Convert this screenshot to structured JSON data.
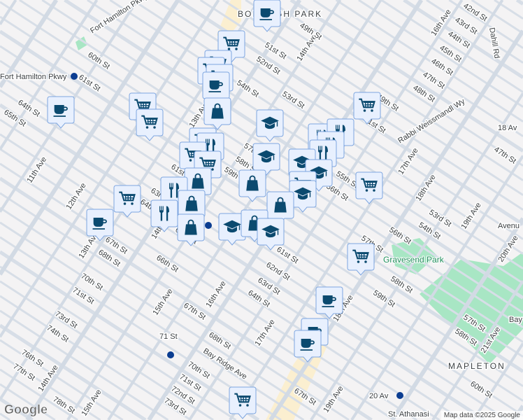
{
  "map": {
    "neighborhoods": [
      "BOROUGH PARK",
      "MAPLETON"
    ],
    "park": "Gravesend Park",
    "stations": [
      "Fort Hamilton Pkwy",
      "71 St",
      "20 Av"
    ],
    "partial_labels": [
      "Avenu",
      "Bay",
      "St. Athanasi"
    ],
    "streets": [
      "49th St",
      "51st St",
      "52nd St",
      "53rd St",
      "54th St",
      "55th St",
      "56th St",
      "57th St",
      "58th St",
      "59th St",
      "60th St",
      "61st St",
      "62nd St",
      "63rd St",
      "64th St",
      "65th St",
      "66th St",
      "67th St",
      "68th St",
      "70th St",
      "71st St",
      "72nd St",
      "73rd St",
      "74th St",
      "76th St",
      "77th St",
      "78th St",
      "Fort Hamilton Pkwy",
      "Bay Ridge Ave",
      "Rabbi Weissmandl Wy",
      "Dahill Rd",
      "42nd St",
      "43rd St",
      "44th St",
      "45th St",
      "46th St",
      "47th St",
      "48th St"
    ],
    "avenues": [
      "11th Ave",
      "12th Ave",
      "13th Ave",
      "14th Ave",
      "15th Ave",
      "16th Ave",
      "17th Ave",
      "18th Ave",
      "19th Ave",
      "20th Ave",
      "21st Ave",
      "18 Av"
    ],
    "colors": {
      "marker_bg": "#e8f0fe",
      "marker_border": "#7ea6e0",
      "marker_icon": "#0b4a6f",
      "park": "#a8e6c4",
      "road": "#d7dee7",
      "background": "#f4f3f4"
    }
  },
  "markers": [
    {
      "icon": "coffee-cup"
    },
    {
      "icon": "shopping-cart"
    },
    {
      "icon": "shopping-cart"
    },
    {
      "icon": "shopping-cart"
    },
    {
      "icon": "shopping-cart"
    },
    {
      "icon": "coffee-cup"
    },
    {
      "icon": "shopping-bag"
    },
    {
      "icon": "coffee-cup"
    },
    {
      "icon": "shopping-cart"
    },
    {
      "icon": "shopping-cart"
    },
    {
      "icon": "graduation-cap"
    },
    {
      "icon": "shopping-cart"
    },
    {
      "icon": "fork-knife"
    },
    {
      "icon": "fork-knife"
    },
    {
      "icon": "fork-knife"
    },
    {
      "icon": "fork-knife"
    },
    {
      "icon": "graduation-cap"
    },
    {
      "icon": "graduation-cap"
    },
    {
      "icon": "graduation-cap"
    },
    {
      "icon": "shopping-cart"
    },
    {
      "icon": "graduation-cap"
    },
    {
      "icon": "shopping-cart"
    },
    {
      "icon": "fork-knife"
    },
    {
      "icon": "shopping-cart"
    },
    {
      "icon": "shopping-cart"
    },
    {
      "icon": "shopping-bag"
    },
    {
      "icon": "shopping-bag"
    },
    {
      "icon": "shopping-cart"
    },
    {
      "icon": "fork-knife"
    },
    {
      "icon": "fork-knife"
    },
    {
      "icon": "shopping-bag"
    },
    {
      "icon": "shopping-bag"
    },
    {
      "icon": "coffee-cup"
    },
    {
      "icon": "shopping-bag"
    },
    {
      "icon": "graduation-cap"
    },
    {
      "icon": "shopping-bag"
    },
    {
      "icon": "graduation-cap"
    },
    {
      "icon": "shopping-cart"
    },
    {
      "icon": "shopping-cart"
    },
    {
      "icon": "coffee-cup"
    },
    {
      "icon": "coffee-cup"
    },
    {
      "icon": "coffee-cup"
    },
    {
      "icon": "shopping-cart"
    }
  ],
  "footer": {
    "logo": "Google",
    "attribution": "Map data ©2025 Google"
  }
}
